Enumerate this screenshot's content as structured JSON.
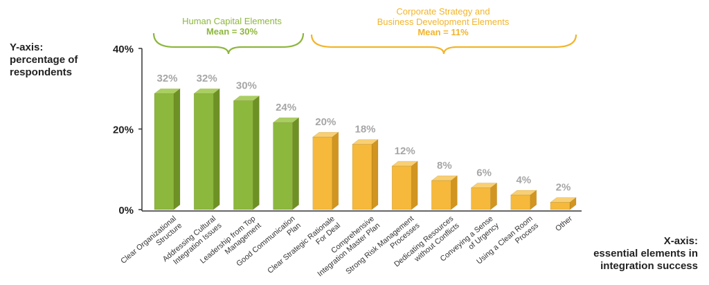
{
  "y_axis_title": [
    "Y-axis:",
    "percentage of",
    "respondents"
  ],
  "x_axis_title": [
    "X-axis:",
    "essential elements  in",
    "integration success"
  ],
  "groups": [
    {
      "name": "Human Capital Elements",
      "name_line2": "",
      "mean": "Mean = 30%",
      "color": "#8db63c"
    },
    {
      "name": "Corporate Strategy and",
      "name_line2": "Business Development Elements",
      "mean": "Mean = 11%",
      "color": "#f2b429"
    }
  ],
  "colors": {
    "green_front": "#8cb83e",
    "green_side": "#6d9125",
    "green_top": "#a9cf62",
    "orange_front": "#f6b93b",
    "orange_side": "#d19520",
    "orange_top": "#f9cf73",
    "value_label": "#a6a6a6",
    "axis": "#333333"
  },
  "chart_data": {
    "type": "bar",
    "ylim": [
      0,
      40
    ],
    "yticks": [
      "0%",
      "20%",
      "40%"
    ],
    "grid": false,
    "categories": [
      [
        "Clear Organizational",
        "Structure"
      ],
      [
        "Addressing Cultural",
        "Integration Issues"
      ],
      [
        "Leadership from Top",
        "Management"
      ],
      [
        "Good Communication",
        "Plan"
      ],
      [
        "Clear Strategic Rationale",
        "For Deal"
      ],
      [
        "Comprehensive",
        "Integration Master Plan"
      ],
      [
        "Strong Risk Management",
        "Processes"
      ],
      [
        "Dedicating Resources",
        "without Conflicts"
      ],
      [
        "Conveying a Sense",
        "of Urgency"
      ],
      [
        "Using a Clean Room",
        "Process"
      ],
      [
        "Other"
      ]
    ],
    "values": [
      32,
      32,
      30,
      24,
      20,
      18,
      12,
      8,
      6,
      4,
      2
    ],
    "value_labels": [
      "32%",
      "32%",
      "30%",
      "24%",
      "20%",
      "18%",
      "12%",
      "8%",
      "6%",
      "4%",
      "2%"
    ],
    "group_index": [
      0,
      0,
      0,
      0,
      1,
      1,
      1,
      1,
      1,
      1,
      1
    ]
  }
}
